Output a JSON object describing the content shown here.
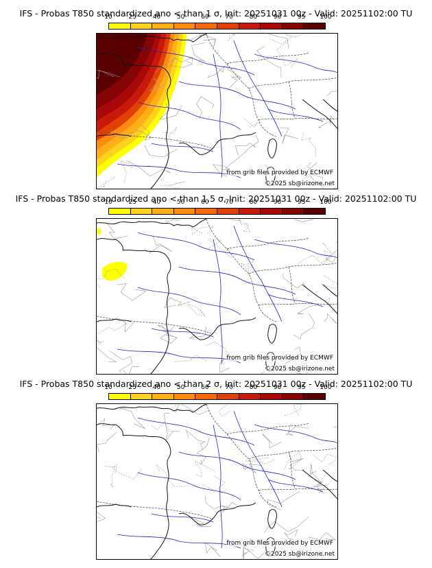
{
  "panels": [
    {
      "title": "IFS - Probas T850  standardized ano < than 1 σ, Init: 20251031 00z - Valid: 20251102:00 TU",
      "credit": "from grib files provided by ECMWF",
      "copyright": "©2025 sb@irizone.net",
      "field": "strong"
    },
    {
      "title": "IFS - Probas T850  standardized ano < than 1.5 σ, Init: 20251031 00z - Valid: 20251102:00 TU",
      "credit": "from grib files provided by ECMWF",
      "copyright": "©2025 sb@irizone.net",
      "field": "weak"
    },
    {
      "title": "IFS - Probas T850  standardized ano < than 2 σ, Init: 20251031 00z - Valid: 20251102:00 TU",
      "credit": "from grib files provided by ECMWF",
      "copyright": "©2025 sb@irizone.net",
      "field": "none"
    }
  ],
  "colorbar": {
    "ticks": [
      "10",
      "25",
      "40",
      "50",
      "60",
      "70",
      "80",
      "90",
      "95",
      "100"
    ],
    "colors": [
      "#ffff00",
      "#ffd21e",
      "#ffb019",
      "#ff8c10",
      "#f56a08",
      "#e04006",
      "#c81a0a",
      "#a80808",
      "#860404",
      "#5a0000"
    ]
  }
}
